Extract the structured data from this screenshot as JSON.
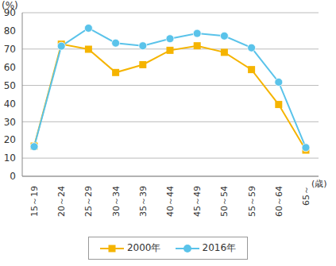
{
  "chart_data": {
    "type": "line",
    "x_label": "(歳)",
    "y_label": "(%)",
    "categories": [
      "15～19",
      "20～24",
      "25～29",
      "30～34",
      "35～39",
      "40～44",
      "45～49",
      "50～54",
      "55～59",
      "60～64",
      "65～"
    ],
    "series": [
      {
        "name": "2000年",
        "color": "#f5b400",
        "marker": "square",
        "values": [
          16.6,
          72.7,
          69.9,
          57.1,
          61.4,
          69.3,
          71.8,
          68.2,
          58.7,
          39.5,
          14.4
        ]
      },
      {
        "name": "2016年",
        "color": "#5ac3ea",
        "marker": "circle",
        "values": [
          16.3,
          71.6,
          81.5,
          73.3,
          71.8,
          75.7,
          78.6,
          77.2,
          70.7,
          51.8,
          15.8
        ]
      }
    ],
    "ylim": [
      0,
      90
    ],
    "yticks": [
      0,
      10,
      20,
      30,
      40,
      50,
      60,
      70,
      80,
      90
    ],
    "grid": true,
    "legend": "bottom"
  }
}
